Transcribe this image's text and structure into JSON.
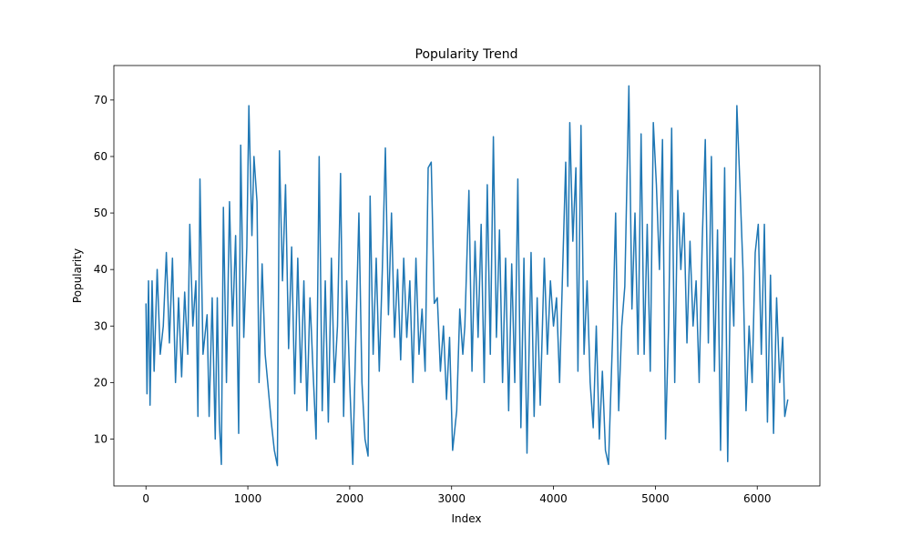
{
  "chart_data": {
    "type": "line",
    "title": "Popularity Trend",
    "x_label": "Index",
    "y_label": "Popularity",
    "xlim": [
      -315,
      6615
    ],
    "ylim": [
      1.7,
      76.1
    ],
    "xticks": [
      0,
      1000,
      2000,
      3000,
      4000,
      5000,
      6000
    ],
    "yticks": [
      10,
      20,
      30,
      40,
      50,
      60,
      70
    ],
    "x": [
      0,
      10,
      25,
      40,
      60,
      80,
      110,
      140,
      170,
      200,
      230,
      260,
      290,
      320,
      350,
      380,
      410,
      430,
      460,
      490,
      510,
      530,
      560,
      600,
      620,
      650,
      680,
      700,
      720,
      740,
      760,
      790,
      820,
      850,
      880,
      910,
      930,
      960,
      990,
      1010,
      1040,
      1060,
      1090,
      1110,
      1140,
      1170,
      1200,
      1230,
      1260,
      1290,
      1310,
      1340,
      1370,
      1400,
      1430,
      1460,
      1490,
      1520,
      1550,
      1580,
      1610,
      1640,
      1670,
      1700,
      1730,
      1760,
      1790,
      1820,
      1850,
      1880,
      1910,
      1940,
      1970,
      2000,
      2030,
      2060,
      2090,
      2120,
      2150,
      2180,
      2200,
      2230,
      2260,
      2290,
      2320,
      2350,
      2380,
      2410,
      2440,
      2470,
      2500,
      2530,
      2560,
      2590,
      2620,
      2650,
      2680,
      2710,
      2740,
      2770,
      2800,
      2830,
      2860,
      2890,
      2920,
      2950,
      2980,
      3010,
      3050,
      3080,
      3110,
      3130,
      3170,
      3200,
      3230,
      3260,
      3290,
      3320,
      3350,
      3380,
      3410,
      3440,
      3470,
      3500,
      3530,
      3560,
      3590,
      3620,
      3650,
      3680,
      3710,
      3740,
      3780,
      3810,
      3840,
      3870,
      3910,
      3940,
      3970,
      4000,
      4030,
      4060,
      4090,
      4120,
      4140,
      4160,
      4190,
      4220,
      4240,
      4270,
      4300,
      4330,
      4360,
      4390,
      4420,
      4450,
      4480,
      4510,
      4540,
      4580,
      4610,
      4640,
      4670,
      4700,
      4740,
      4770,
      4800,
      4830,
      4860,
      4890,
      4920,
      4950,
      4980,
      5010,
      5040,
      5070,
      5100,
      5130,
      5160,
      5190,
      5220,
      5250,
      5280,
      5310,
      5340,
      5370,
      5400,
      5430,
      5460,
      5490,
      5520,
      5550,
      5580,
      5610,
      5640,
      5680,
      5710,
      5740,
      5770,
      5800,
      5830,
      5860,
      5890,
      5920,
      5950,
      5980,
      6010,
      6040,
      6070,
      6100,
      6130,
      6160,
      6190,
      6220,
      6250,
      6270,
      6300
    ],
    "series": [
      {
        "name": "Popularity",
        "color": "#1f77b4",
        "values": [
          34,
          18,
          38,
          16,
          38,
          22,
          40,
          25,
          30,
          43,
          27,
          42,
          20,
          35,
          21,
          36,
          25,
          48,
          30,
          38,
          14,
          56,
          25,
          32,
          14,
          35,
          10,
          35,
          13,
          5.5,
          51,
          20,
          52,
          30,
          46,
          11,
          62,
          28,
          44,
          69,
          46,
          60,
          52,
          20,
          41,
          25,
          19,
          13,
          8,
          5.3,
          61,
          38,
          55,
          26,
          44,
          18,
          42,
          20,
          38,
          15,
          35,
          22,
          10,
          60,
          15,
          38,
          13,
          42,
          20,
          30,
          57,
          14,
          38,
          20,
          5.5,
          28,
          50,
          20,
          10,
          7,
          53,
          25,
          42,
          22,
          40,
          61.5,
          32,
          50,
          28,
          40,
          24,
          42,
          28,
          38,
          20,
          42,
          25,
          33,
          22,
          58,
          59,
          34,
          35,
          22,
          30,
          17,
          28,
          8,
          15,
          33,
          25,
          30,
          54,
          22,
          45,
          28,
          48,
          20,
          55,
          25,
          63.5,
          28,
          47,
          20,
          42,
          15,
          41,
          20,
          56,
          12,
          42,
          7.5,
          43,
          14,
          35,
          16,
          42,
          25,
          38,
          30,
          35,
          20,
          40,
          59,
          37,
          66,
          45,
          58,
          22,
          65.5,
          25,
          38,
          20,
          12,
          30,
          10,
          22,
          8,
          5.5,
          28,
          50,
          15,
          30,
          37,
          72.5,
          33,
          50,
          25,
          64,
          25,
          48,
          22,
          66,
          55,
          40,
          63,
          10,
          30,
          65,
          20,
          54,
          40,
          50,
          27,
          45,
          30,
          38,
          20,
          45,
          63,
          27,
          60,
          22,
          47,
          8,
          58,
          6,
          42,
          30,
          69,
          55,
          40,
          15,
          30,
          20,
          43,
          48,
          25,
          48,
          13,
          39,
          11,
          35,
          20,
          28,
          14,
          17
        ]
      }
    ]
  }
}
